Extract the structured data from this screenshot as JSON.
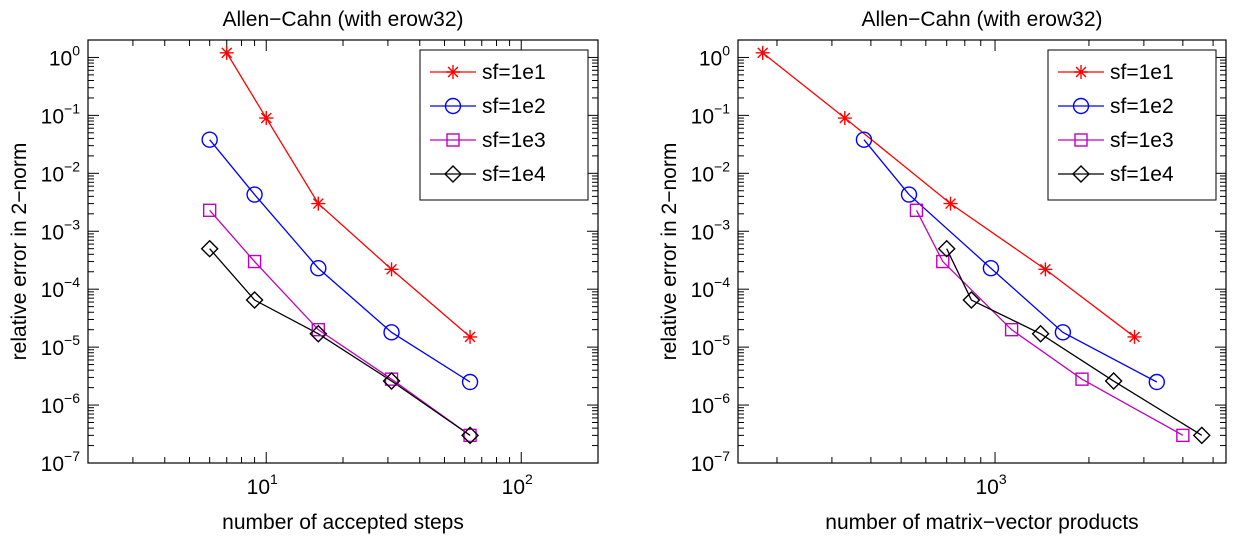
{
  "chart_data": [
    {
      "type": "line",
      "title": "Allen−Cahn (with erow32)",
      "xlabel": "number of accepted steps",
      "ylabel": "relative error in 2−norm",
      "xscale": "log",
      "yscale": "log",
      "xlim": [
        2,
        200
      ],
      "ylim": [
        1e-07,
        2
      ],
      "grid": false,
      "legend_position": "top-right",
      "xticks": [
        {
          "value": 10,
          "base": "10",
          "exp": "1"
        },
        {
          "value": 100,
          "base": "10",
          "exp": "2"
        }
      ],
      "yticks": [
        {
          "value": 1,
          "base": "10",
          "exp": "0"
        },
        {
          "value": 0.1,
          "base": "10",
          "exp": "−1"
        },
        {
          "value": 0.01,
          "base": "10",
          "exp": "−2"
        },
        {
          "value": 0.001,
          "base": "10",
          "exp": "−3"
        },
        {
          "value": 0.0001,
          "base": "10",
          "exp": "−4"
        },
        {
          "value": 1e-05,
          "base": "10",
          "exp": "−5"
        },
        {
          "value": 1e-06,
          "base": "10",
          "exp": "−6"
        },
        {
          "value": 1e-07,
          "base": "10",
          "exp": "−7"
        }
      ],
      "series": [
        {
          "name": "sf=1e1",
          "color": "#ff0000",
          "marker": "star",
          "x": [
            7,
            10,
            16,
            31,
            63
          ],
          "y": [
            1.2,
            0.09,
            0.003,
            0.00022,
            1.5e-05
          ]
        },
        {
          "name": "sf=1e2",
          "color": "#0000ff",
          "marker": "circle",
          "x": [
            6,
            9,
            16,
            31,
            63
          ],
          "y": [
            0.038,
            0.0043,
            0.00023,
            1.8e-05,
            2.5e-06
          ]
        },
        {
          "name": "sf=1e3",
          "color": "#c000c0",
          "marker": "square",
          "x": [
            6,
            9,
            16,
            31,
            63
          ],
          "y": [
            0.0023,
            0.0003,
            2e-05,
            2.8e-06,
            3e-07
          ]
        },
        {
          "name": "sf=1e4",
          "color": "#000000",
          "marker": "diamond",
          "x": [
            6,
            9,
            16,
            31,
            63
          ],
          "y": [
            0.0005,
            6.5e-05,
            1.7e-05,
            2.6e-06,
            3e-07
          ]
        }
      ]
    },
    {
      "type": "line",
      "title": "Allen−Cahn (with erow32)",
      "xlabel": "number of matrix−vector products",
      "ylabel": "relative error in 2−norm",
      "xscale": "log",
      "yscale": "log",
      "xlim": [
        150,
        5500
      ],
      "ylim": [
        1e-07,
        2
      ],
      "grid": false,
      "legend_position": "top-right",
      "xticks": [
        {
          "value": 1000,
          "base": "10",
          "exp": "3"
        }
      ],
      "yticks": [
        {
          "value": 1,
          "base": "10",
          "exp": "0"
        },
        {
          "value": 0.1,
          "base": "10",
          "exp": "−1"
        },
        {
          "value": 0.01,
          "base": "10",
          "exp": "−2"
        },
        {
          "value": 0.001,
          "base": "10",
          "exp": "−3"
        },
        {
          "value": 0.0001,
          "base": "10",
          "exp": "−4"
        },
        {
          "value": 1e-05,
          "base": "10",
          "exp": "−5"
        },
        {
          "value": 1e-06,
          "base": "10",
          "exp": "−6"
        },
        {
          "value": 1e-07,
          "base": "10",
          "exp": "−7"
        }
      ],
      "series": [
        {
          "name": "sf=1e1",
          "color": "#ff0000",
          "marker": "star",
          "x": [
            180,
            330,
            720,
            1450,
            2800
          ],
          "y": [
            1.2,
            0.09,
            0.003,
            0.00022,
            1.5e-05
          ]
        },
        {
          "name": "sf=1e2",
          "color": "#0000ff",
          "marker": "circle",
          "x": [
            380,
            530,
            970,
            1650,
            3300
          ],
          "y": [
            0.038,
            0.0043,
            0.00023,
            1.8e-05,
            2.5e-06
          ]
        },
        {
          "name": "sf=1e3",
          "color": "#c000c0",
          "marker": "square",
          "x": [
            560,
            680,
            1130,
            1900,
            4000
          ],
          "y": [
            0.0023,
            0.0003,
            2e-05,
            2.8e-06,
            3e-07
          ]
        },
        {
          "name": "sf=1e4",
          "color": "#000000",
          "marker": "diamond",
          "x": [
            700,
            840,
            1400,
            2400,
            4600
          ],
          "y": [
            0.0005,
            6.5e-05,
            1.7e-05,
            2.6e-06,
            3e-07
          ]
        }
      ]
    }
  ]
}
